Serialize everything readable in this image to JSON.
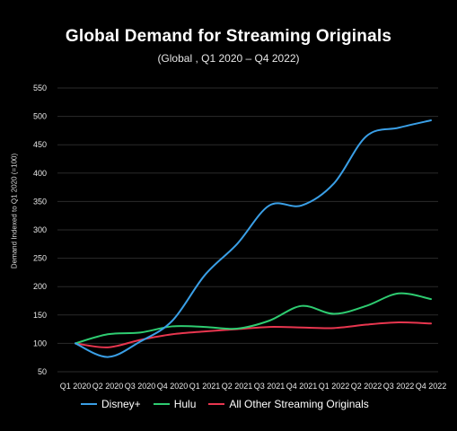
{
  "chart_data": {
    "type": "line",
    "title": "Global Demand for Streaming Originals",
    "subtitle": "(Global ,  Q1 2020 – Q4 2022)",
    "ylabel": "Demand Indexed to Q1 2020 (=100)",
    "xlabel": "",
    "categories": [
      "Q1 2020",
      "Q2 2020",
      "Q3 2020",
      "Q4 2020",
      "Q1 2021",
      "Q2 2021",
      "Q3 2021",
      "Q4 2021",
      "Q1 2022",
      "Q2 2022",
      "Q3 2022",
      "Q4 2022"
    ],
    "ylim": [
      50,
      550
    ],
    "yticks": [
      50,
      100,
      150,
      200,
      250,
      300,
      350,
      400,
      450,
      500,
      550
    ],
    "grid": true,
    "legend_position": "bottom",
    "series": [
      {
        "name": "Disney+",
        "color": "#3a9fe6",
        "values": [
          100,
          76,
          103,
          140,
          220,
          275,
          343,
          343,
          382,
          465,
          480,
          493
        ]
      },
      {
        "name": "Hulu",
        "color": "#2ecc71",
        "values": [
          100,
          116,
          119,
          130,
          129,
          126,
          140,
          166,
          152,
          166,
          188,
          178
        ]
      },
      {
        "name": "All Other Streaming Originals",
        "color": "#e8364f",
        "values": [
          100,
          93,
          106,
          116,
          121,
          125,
          129,
          128,
          127,
          133,
          137,
          135
        ]
      }
    ]
  }
}
